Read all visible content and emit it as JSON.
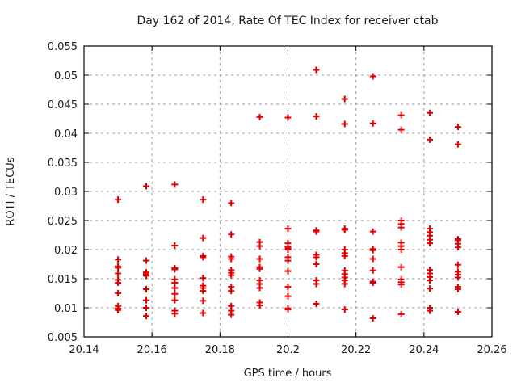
{
  "chart_data": {
    "type": "scatter",
    "title": "Day 162 of 2014, Rate Of TEC Index for receiver ctab",
    "xlabel": "GPS time / hours",
    "ylabel": "ROTI / TECUs",
    "xlim": [
      20.14,
      20.26
    ],
    "ylim": [
      0.005,
      0.055
    ],
    "xticks": [
      {
        "value": 20.14,
        "label": "20.14"
      },
      {
        "value": 20.16,
        "label": "20.16"
      },
      {
        "value": 20.18,
        "label": "20.18"
      },
      {
        "value": 20.2,
        "label": "20.2"
      },
      {
        "value": 20.22,
        "label": "20.22"
      },
      {
        "value": 20.24,
        "label": "20.24"
      },
      {
        "value": 20.26,
        "label": "20.26"
      }
    ],
    "yticks": [
      {
        "value": 0.005,
        "label": "0.005"
      },
      {
        "value": 0.01,
        "label": "0.01"
      },
      {
        "value": 0.015,
        "label": "0.015"
      },
      {
        "value": 0.02,
        "label": "0.02"
      },
      {
        "value": 0.025,
        "label": "0.025"
      },
      {
        "value": 0.03,
        "label": "0.03"
      },
      {
        "value": 0.035,
        "label": "0.035"
      },
      {
        "value": 0.04,
        "label": "0.04"
      },
      {
        "value": 0.045,
        "label": "0.045"
      },
      {
        "value": 0.05,
        "label": "0.05"
      },
      {
        "value": 0.055,
        "label": "0.055"
      }
    ],
    "grid": true,
    "legend_position": "none",
    "marker": {
      "shape": "plus",
      "color": "#e00000",
      "size": 9,
      "stroke_width": 2
    },
    "grid_color": "#9a9a9a",
    "border_color": "#000000",
    "series": [
      {
        "name": "ROTI",
        "columns": [
          {
            "t": 20.15,
            "values": [
              0.0286,
              0.0183,
              0.0171,
              0.0169,
              0.0159,
              0.0148,
              0.0143,
              0.0125,
              0.0103,
              0.0099,
              0.0096
            ]
          },
          {
            "t": 20.1583,
            "values": [
              0.0309,
              0.0181,
              0.0161,
              0.0158,
              0.0155,
              0.0132,
              0.0113,
              0.01,
              0.0086
            ]
          },
          {
            "t": 20.1667,
            "values": [
              0.0312,
              0.0207,
              0.0168,
              0.0166,
              0.0149,
              0.0143,
              0.0134,
              0.0124,
              0.0113,
              0.0095,
              0.009
            ]
          },
          {
            "t": 20.175,
            "values": [
              0.0286,
              0.022,
              0.0189,
              0.0187,
              0.0151,
              0.0138,
              0.0134,
              0.0129,
              0.0112,
              0.0091
            ]
          },
          {
            "t": 20.1833,
            "values": [
              0.028,
              0.0226,
              0.0188,
              0.0184,
              0.0165,
              0.016,
              0.0156,
              0.0136,
              0.0129,
              0.0103,
              0.0095,
              0.0088
            ]
          },
          {
            "t": 20.1917,
            "values": [
              0.0428,
              0.0213,
              0.0206,
              0.0184,
              0.017,
              0.0167,
              0.0147,
              0.0141,
              0.0134,
              0.0109,
              0.0104
            ]
          },
          {
            "t": 20.2,
            "values": [
              0.0427,
              0.0236,
              0.0211,
              0.0205,
              0.0202,
              0.02,
              0.0187,
              0.0181,
              0.0163,
              0.0136,
              0.012,
              0.0099,
              0.0097
            ]
          },
          {
            "t": 20.2083,
            "values": [
              0.0509,
              0.0429,
              0.0233,
              0.0231,
              0.0191,
              0.0187,
              0.0175,
              0.0147,
              0.0141,
              0.0107
            ]
          },
          {
            "t": 20.2167,
            "values": [
              0.0459,
              0.0416,
              0.0236,
              0.0234,
              0.02,
              0.0194,
              0.0189,
              0.0164,
              0.0158,
              0.0152,
              0.0147,
              0.0141,
              0.0097
            ]
          },
          {
            "t": 20.225,
            "values": [
              0.0498,
              0.0417,
              0.0231,
              0.0201,
              0.0199,
              0.0184,
              0.0164,
              0.0145,
              0.0143,
              0.0082
            ]
          },
          {
            "t": 20.2333,
            "values": [
              0.0431,
              0.0406,
              0.025,
              0.0244,
              0.0238,
              0.0212,
              0.0206,
              0.02,
              0.017,
              0.0149,
              0.0144,
              0.014,
              0.0089
            ]
          },
          {
            "t": 20.2417,
            "values": [
              0.0435,
              0.0389,
              0.0236,
              0.023,
              0.0224,
              0.0217,
              0.0211,
              0.0165,
              0.0159,
              0.0153,
              0.0147,
              0.0133,
              0.01,
              0.0095
            ]
          },
          {
            "t": 20.25,
            "values": [
              0.0411,
              0.0381,
              0.0218,
              0.0216,
              0.021,
              0.0204,
              0.0174,
              0.0162,
              0.0157,
              0.0152,
              0.0136,
              0.0132,
              0.0093
            ]
          }
        ]
      }
    ]
  }
}
